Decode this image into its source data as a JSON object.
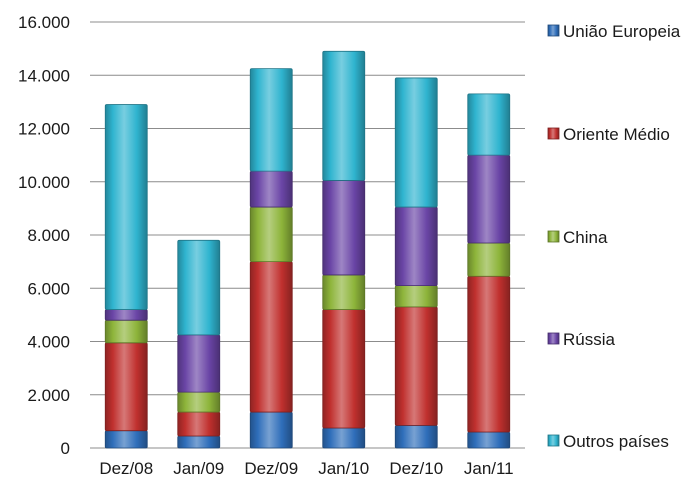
{
  "chart_data": {
    "type": "bar",
    "stacked": true,
    "title": "",
    "xlabel": "",
    "ylabel": "",
    "ylim": [
      0,
      16000
    ],
    "yticks": [
      "0",
      "2.000",
      "4.000",
      "6.000",
      "8.000",
      "10.000",
      "12.000",
      "14.000",
      "16.000"
    ],
    "ytick_values": [
      0,
      2000,
      4000,
      6000,
      8000,
      10000,
      12000,
      14000,
      16000
    ],
    "grid": true,
    "legend_position": "right",
    "categories": [
      "Dez/08",
      "Jan/09",
      "Dez/09",
      "Jan/10",
      "Dez/10",
      "Jan/11"
    ],
    "series": [
      {
        "name": "União Europeia",
        "color": "#2F6EBA",
        "values": [
          650,
          450,
          1350,
          750,
          850,
          600
        ]
      },
      {
        "name": "Oriente Médio",
        "color": "#C0302E",
        "values": [
          3300,
          900,
          5650,
          4450,
          4450,
          5850
        ]
      },
      {
        "name": "China",
        "color": "#8DB43A",
        "values": [
          850,
          750,
          2050,
          1300,
          800,
          1250
        ]
      },
      {
        "name": "Rússia",
        "color": "#6A45A6",
        "values": [
          400,
          2150,
          1350,
          3550,
          2950,
          3300
        ]
      },
      {
        "name": "Outros países",
        "color": "#2FB4CF",
        "values": [
          7700,
          3550,
          3850,
          4850,
          4850,
          2300
        ]
      }
    ]
  }
}
